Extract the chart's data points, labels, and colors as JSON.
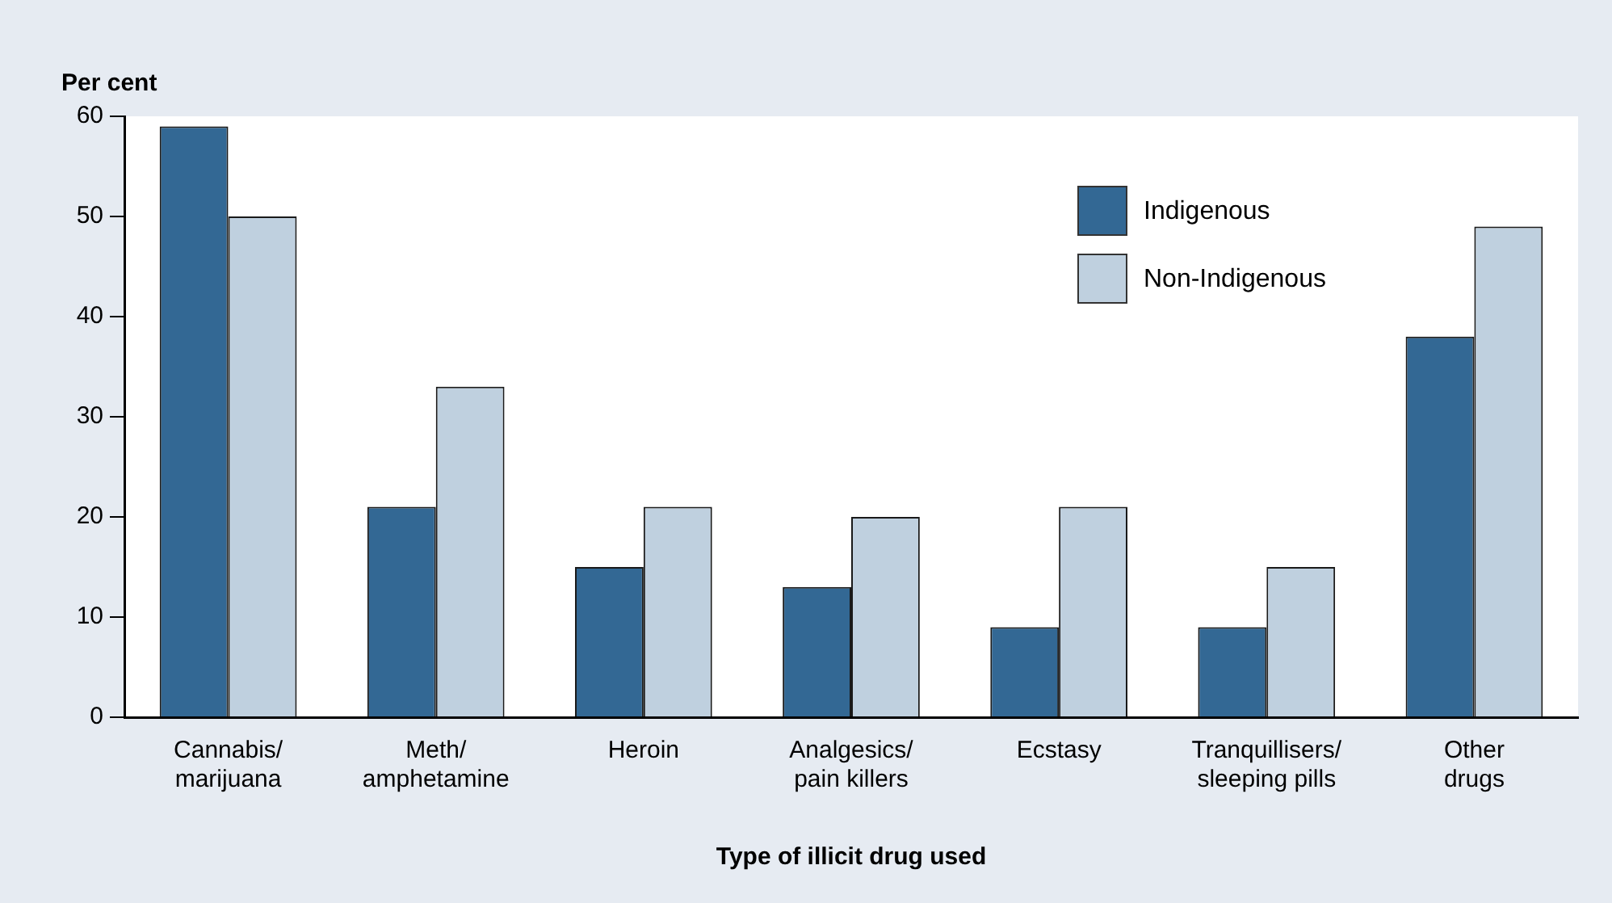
{
  "chart_data": {
    "type": "bar",
    "ylabel": "Per cent",
    "xlabel": "Type of illicit drug used",
    "categories": [
      "Cannabis/\nmarijuana",
      "Meth/\namphetamine",
      "Heroin",
      "Analgesics/\npain killers",
      "Ecstasy",
      "Tranquillisers/\nsleeping pills",
      "Other\ndrugs"
    ],
    "series": [
      {
        "name": "Indigenous",
        "color": "#336894",
        "values": [
          59,
          21,
          15,
          13,
          9,
          9,
          38
        ]
      },
      {
        "name": "Non-Indigenous",
        "color": "#bfd0df",
        "values": [
          50,
          33,
          21,
          20,
          21,
          15,
          49
        ]
      }
    ],
    "ylim": [
      0,
      60
    ],
    "yticks": [
      0,
      10,
      20,
      30,
      40,
      50,
      60
    ],
    "grid": false,
    "legend": "top right"
  }
}
